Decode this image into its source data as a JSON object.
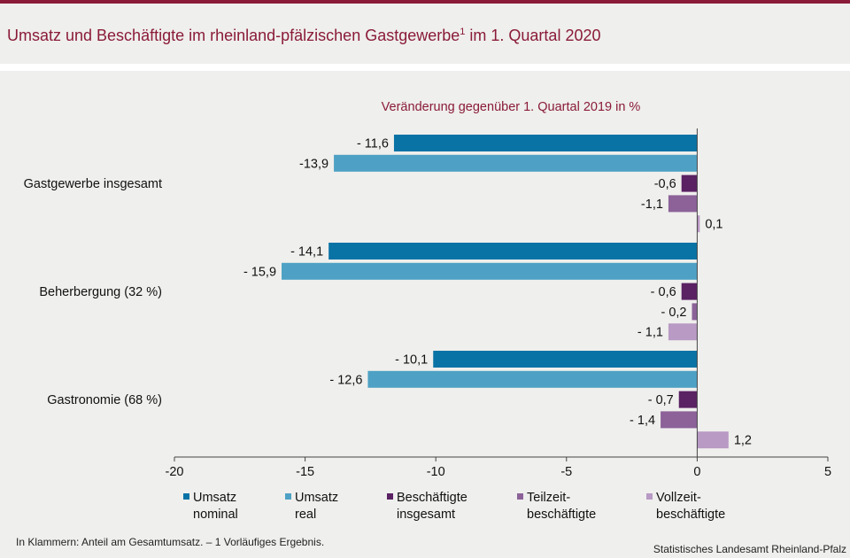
{
  "title": "Umsatz und Beschäftigte im rheinland-pfälzischen Gastgewerbe",
  "title_sup": "1",
  "title_suffix": "im 1. Quartal 2020",
  "footnote": "In Klammern: Anteil am Gesamtumsatz. – 1 Vorläufiges Ergebnis.",
  "source": "Statistisches Landesamt Rheinland-Pfalz",
  "chart_data": {
    "type": "bar",
    "orientation": "horizontal",
    "subtitle": "Veränderung gegenüber 1. Quartal 2019 in %",
    "categories": [
      "Gastgewerbe insgesamt",
      "Beherbergung (32 %)",
      "Gastronomie (68 %)"
    ],
    "xlim": [
      -20,
      5
    ],
    "xticks": [
      -20,
      -15,
      -10,
      -5,
      0,
      5
    ],
    "xtick_labels": [
      "-20",
      "-15",
      "-10",
      "-5",
      "0",
      "5"
    ],
    "legend_position": "bottom",
    "grid": false,
    "series": [
      {
        "name_lines": [
          "Umsatz",
          "nominal"
        ],
        "color": "#0a73a5",
        "values": [
          -11.6,
          -14.1,
          -10.1
        ],
        "labels": [
          "- 11,6",
          "- 14,1",
          "- 10,1"
        ]
      },
      {
        "name_lines": [
          "Umsatz",
          "real"
        ],
        "color": "#4ea1c4",
        "values": [
          -13.9,
          -15.9,
          -12.6
        ],
        "labels": [
          "-13,9",
          "- 15,9",
          "- 12,6"
        ]
      },
      {
        "name_lines": [
          "Beschäftigte",
          "insgesamt"
        ],
        "color": "#5a2163",
        "values": [
          -0.6,
          -0.6,
          -0.7
        ],
        "labels": [
          "-0,6",
          "- 0,6",
          "- 0,7"
        ]
      },
      {
        "name_lines": [
          "Teilzeit-",
          "beschäftigte"
        ],
        "color": "#8c6299",
        "values": [
          -1.1,
          -0.2,
          -1.4
        ],
        "labels": [
          "-1,1",
          "- 0,2",
          "- 1,4"
        ]
      },
      {
        "name_lines": [
          "Vollzeit-",
          "beschäftigte"
        ],
        "color": "#b89ac4",
        "values": [
          0.1,
          -1.1,
          1.2
        ],
        "labels": [
          "0,1",
          "- 1,1",
          "1,2"
        ]
      }
    ]
  }
}
